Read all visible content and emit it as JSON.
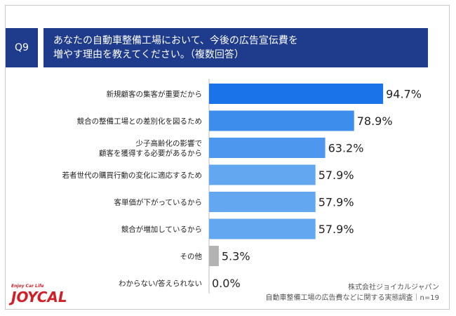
{
  "header": {
    "badge": "Q9",
    "title_line1": "あなたの自動車整備工場において、今後の広告宣伝費を",
    "title_line2": "増やす理由を教えてください。（複数回答）"
  },
  "chart_data": {
    "type": "bar",
    "orientation": "horizontal",
    "categories": [
      [
        "新規顧客の集客が重要だから"
      ],
      [
        "競合の整備工場との差別化を図るため"
      ],
      [
        "少子高齢化の影響で",
        "顧客を獲得する必要があるから"
      ],
      [
        "若者世代の購買行動の変化に適応するため"
      ],
      [
        "客単価が下がっているから"
      ],
      [
        "競合が増加しているから"
      ],
      [
        "その他"
      ],
      [
        "わからない/答えられない"
      ]
    ],
    "values": [
      94.7,
      78.9,
      63.2,
      57.9,
      57.9,
      57.9,
      5.3,
      0.0
    ],
    "value_labels": [
      "94.7%",
      "78.9%",
      "63.2%",
      "57.9%",
      "57.9%",
      "57.9%",
      "5.3%",
      "0.0%"
    ],
    "colors": [
      "#1a73e8",
      "#3d8eec",
      "#4d98ee",
      "#63a7f0",
      "#63a7f0",
      "#63a7f0",
      "#b3b3b3",
      "#b3b3b3"
    ],
    "xlim": [
      0,
      100
    ]
  },
  "footer": {
    "company": "株式会社ジョイカルジャパン",
    "survey": "自動車整備工場の広告費などに関する実態調査｜n=19"
  },
  "logo": {
    "tagline": "Enjoy Car Life",
    "wordmark": "JOYCAL"
  }
}
